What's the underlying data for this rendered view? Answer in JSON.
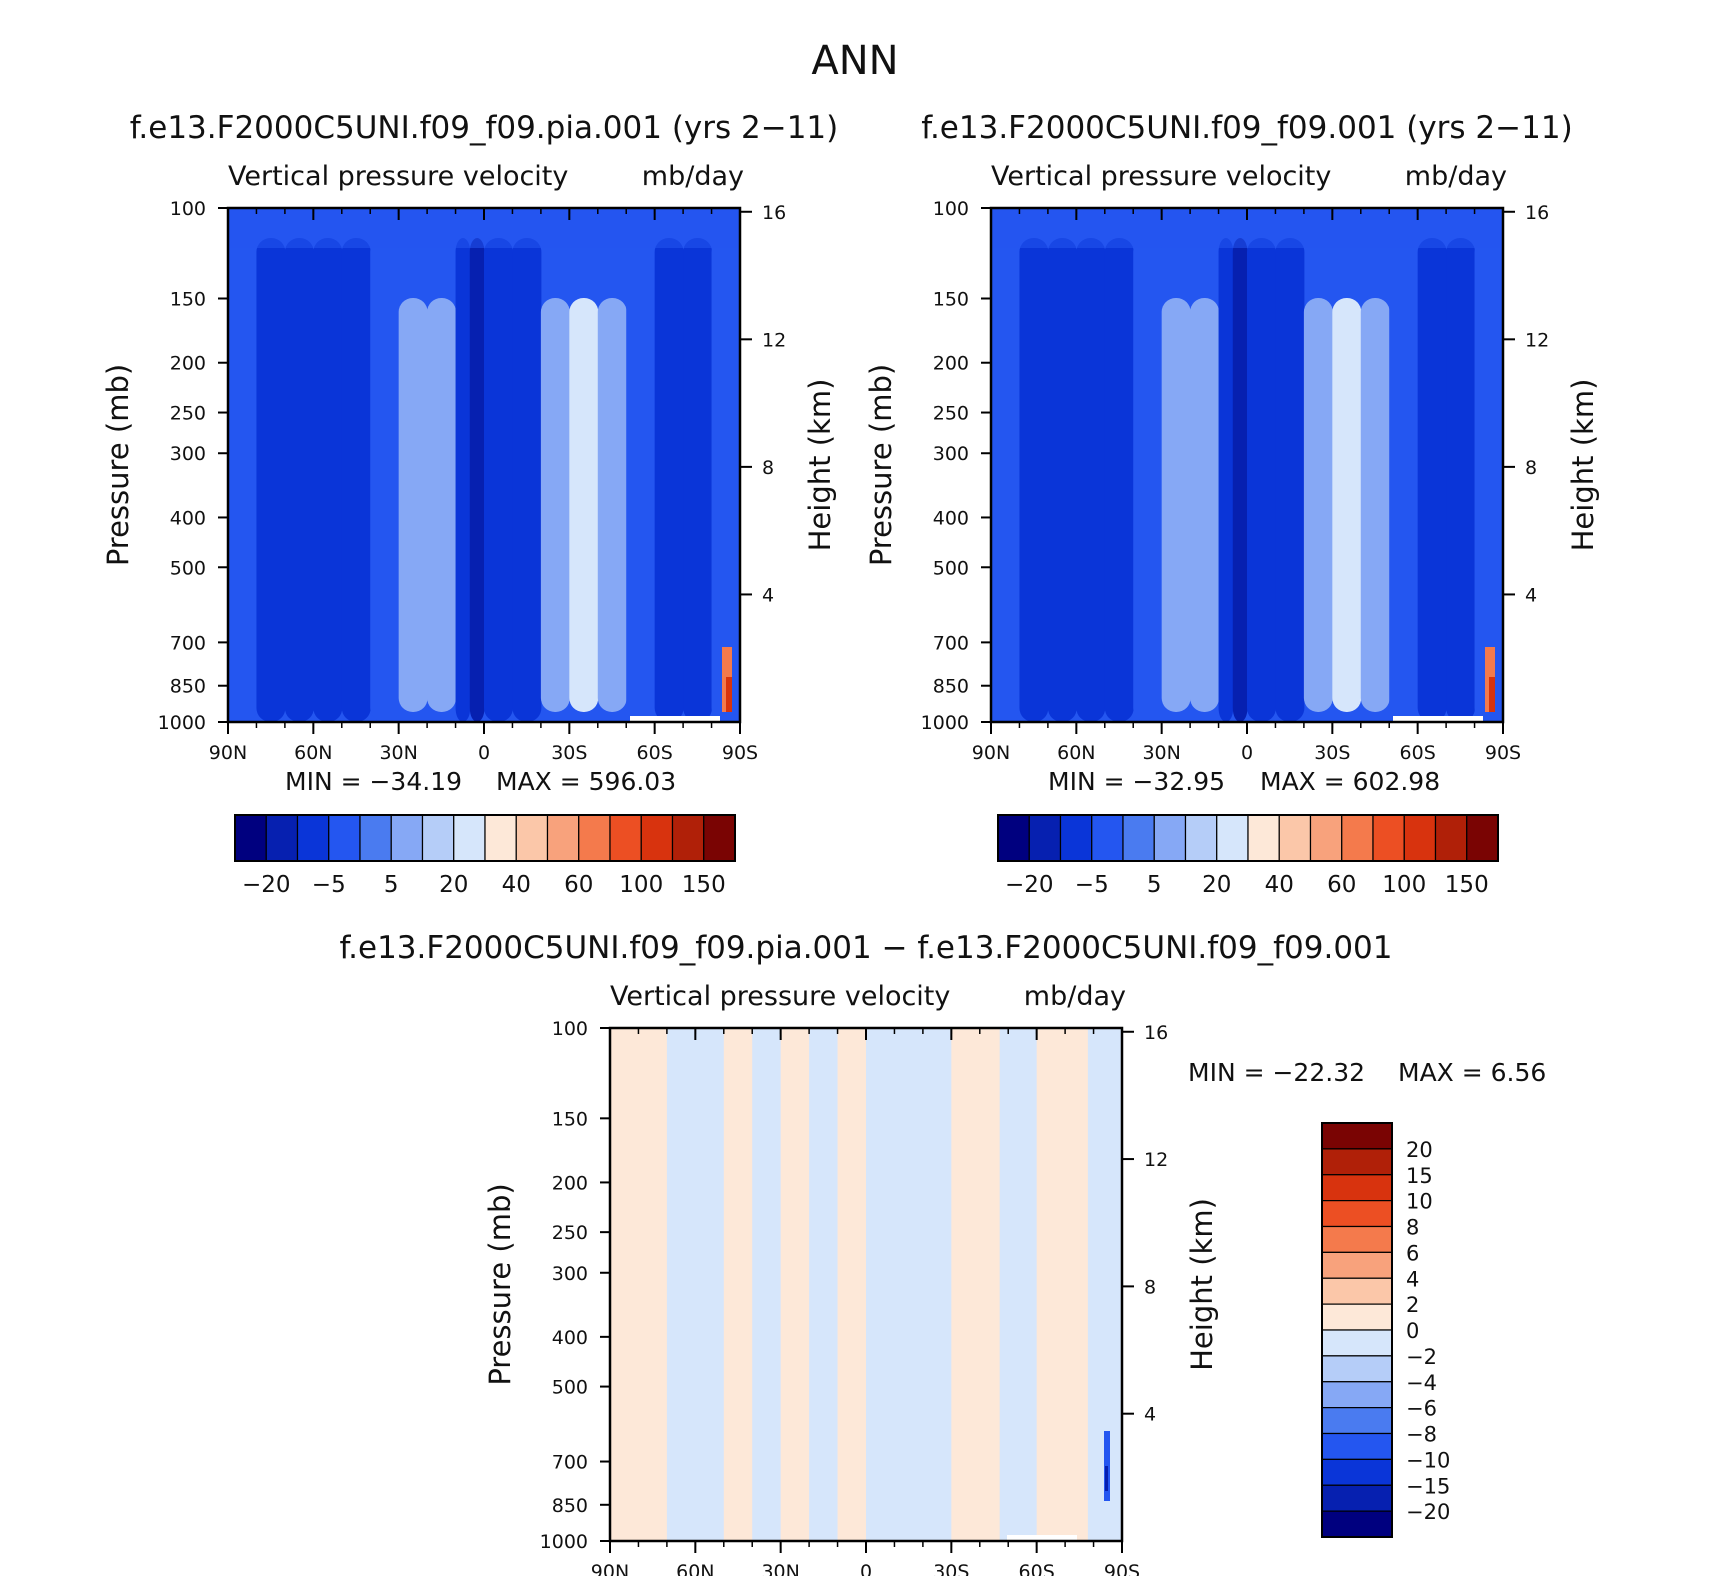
{
  "figure_title": "ANN",
  "chart_data": [
    {
      "type": "heatmap",
      "panel": "top-left",
      "title": "f.e13.F2000C5UNI.f09_f09.pia.001 (yrs 2−11)",
      "subtitle_left": "Vertical pressure velocity",
      "subtitle_right": "mb/day",
      "ylabel": "Pressure (mb)",
      "ylabel_right": "Height (km)",
      "xticks": [
        "90N",
        "60N",
        "30N",
        "0",
        "30S",
        "60S",
        "90S"
      ],
      "xtick_values": [
        90,
        60,
        30,
        0,
        -30,
        -60,
        -90
      ],
      "yticks": [
        "100",
        "150",
        "200",
        "250",
        "300",
        "400",
        "500",
        "700",
        "850",
        "1000"
      ],
      "ytick_values": [
        100,
        150,
        200,
        250,
        300,
        400,
        500,
        700,
        850,
        1000
      ],
      "y_scale": "log",
      "ylim": [
        1000,
        100
      ],
      "right_ticks": [
        "4",
        "8",
        "12",
        "16"
      ],
      "right_tick_values": [
        4,
        8,
        12,
        16
      ],
      "min_label": "MIN = −34.19",
      "max_label": "MAX = 596.03",
      "colorbar_orientation": "horizontal",
      "colorbar_labels": [
        "−20",
        "−5",
        "5",
        "20",
        "40",
        "60",
        "100",
        "150"
      ],
      "colorbar_colors": [
        "#00007f",
        "#0620b0",
        "#0a35d8",
        "#2456f0",
        "#4a7bf0",
        "#86a8f5",
        "#b5cdf8",
        "#d6e6fb",
        "#fde8d8",
        "#fbc7a9",
        "#f8a27c",
        "#f47a4c",
        "#ec4f23",
        "#d8330e",
        "#b02008",
        "#7a0403"
      ],
      "profile_lat": [
        90,
        80,
        70,
        60,
        50,
        40,
        30,
        20,
        10,
        5,
        0,
        -10,
        -20,
        -30,
        -40,
        -50,
        -60,
        -70,
        -80,
        -90
      ],
      "profile_val": [
        -8,
        -10,
        -10,
        -14,
        -11,
        -6,
        5,
        4,
        -10,
        -22,
        -14,
        -10,
        3,
        12,
        4,
        -6,
        -15,
        -12,
        -6,
        -8
      ],
      "max_value": 596.03,
      "min_value": -34.19
    },
    {
      "type": "heatmap",
      "panel": "top-right",
      "title": "f.e13.F2000C5UNI.f09_f09.001 (yrs 2−11)",
      "subtitle_left": "Vertical pressure velocity",
      "subtitle_right": "mb/day",
      "ylabel": "Pressure (mb)",
      "ylabel_right": "Height (km)",
      "xticks": [
        "90N",
        "60N",
        "30N",
        "0",
        "30S",
        "60S",
        "90S"
      ],
      "xtick_values": [
        90,
        60,
        30,
        0,
        -30,
        -60,
        -90
      ],
      "yticks": [
        "100",
        "150",
        "200",
        "250",
        "300",
        "400",
        "500",
        "700",
        "850",
        "1000"
      ],
      "ytick_values": [
        100,
        150,
        200,
        250,
        300,
        400,
        500,
        700,
        850,
        1000
      ],
      "y_scale": "log",
      "ylim": [
        1000,
        100
      ],
      "right_ticks": [
        "4",
        "8",
        "12",
        "16"
      ],
      "right_tick_values": [
        4,
        8,
        12,
        16
      ],
      "min_label": "MIN = −32.95",
      "max_label": "MAX = 602.98",
      "colorbar_orientation": "horizontal",
      "colorbar_labels": [
        "−20",
        "−5",
        "5",
        "20",
        "40",
        "60",
        "100",
        "150"
      ],
      "colorbar_colors": [
        "#00007f",
        "#0620b0",
        "#0a35d8",
        "#2456f0",
        "#4a7bf0",
        "#86a8f5",
        "#b5cdf8",
        "#d6e6fb",
        "#fde8d8",
        "#fbc7a9",
        "#f8a27c",
        "#f47a4c",
        "#ec4f23",
        "#d8330e",
        "#b02008",
        "#7a0403"
      ],
      "profile_lat": [
        90,
        80,
        70,
        60,
        50,
        40,
        30,
        20,
        10,
        5,
        0,
        -10,
        -20,
        -30,
        -40,
        -50,
        -60,
        -70,
        -80,
        -90
      ],
      "profile_val": [
        -8,
        -10,
        -10,
        -14,
        -11,
        -6,
        5,
        4,
        -10,
        -24,
        -14,
        -10,
        3,
        12,
        4,
        -6,
        -15,
        -12,
        -6,
        -8
      ],
      "max_value": 602.98,
      "min_value": -32.95
    },
    {
      "type": "heatmap",
      "panel": "bottom",
      "title": "f.e13.F2000C5UNI.f09_f09.pia.001 − f.e13.F2000C5UNI.f09_f09.001",
      "subtitle_left": "Vertical pressure velocity",
      "subtitle_right": "mb/day",
      "ylabel": "Pressure (mb)",
      "ylabel_right": "Height (km)",
      "xticks": [
        "90N",
        "60N",
        "30N",
        "0",
        "30S",
        "60S",
        "90S"
      ],
      "xtick_values": [
        90,
        60,
        30,
        0,
        -30,
        -60,
        -90
      ],
      "yticks": [
        "100",
        "150",
        "200",
        "250",
        "300",
        "400",
        "500",
        "700",
        "850",
        "1000"
      ],
      "ytick_values": [
        100,
        150,
        200,
        250,
        300,
        400,
        500,
        700,
        850,
        1000
      ],
      "y_scale": "log",
      "ylim": [
        1000,
        100
      ],
      "right_ticks": [
        "4",
        "8",
        "12",
        "16"
      ],
      "right_tick_values": [
        4,
        8,
        12,
        16
      ],
      "min_label": "MIN = −22.32",
      "max_label": "MAX =    6.56",
      "colorbar_orientation": "vertical",
      "colorbar_labels": [
        "20",
        "15",
        "10",
        "8",
        "6",
        "4",
        "2",
        "0",
        "−2",
        "−4",
        "−6",
        "−8",
        "−10",
        "−15",
        "−20"
      ],
      "colorbar_colors": [
        "#7a0403",
        "#b02008",
        "#d8330e",
        "#ec4f23",
        "#f47a4c",
        "#f8a27c",
        "#fbc7a9",
        "#fde8d8",
        "#d6e6fb",
        "#b5cdf8",
        "#86a8f5",
        "#4a7bf0",
        "#2456f0",
        "#0a35d8",
        "#0620b0",
        "#00007f"
      ],
      "bands_lat": [
        90,
        70,
        50,
        40,
        30,
        20,
        10,
        0,
        -10,
        -20,
        -30,
        -47,
        -60,
        -78,
        -90
      ],
      "bands_sign": [
        "pos",
        "neg",
        "pos",
        "neg",
        "pos",
        "neg",
        "pos",
        "neg",
        "neg",
        "neg",
        "pos",
        "neg",
        "pos",
        "neg"
      ],
      "max_value": 6.56,
      "min_value": -22.32
    }
  ]
}
